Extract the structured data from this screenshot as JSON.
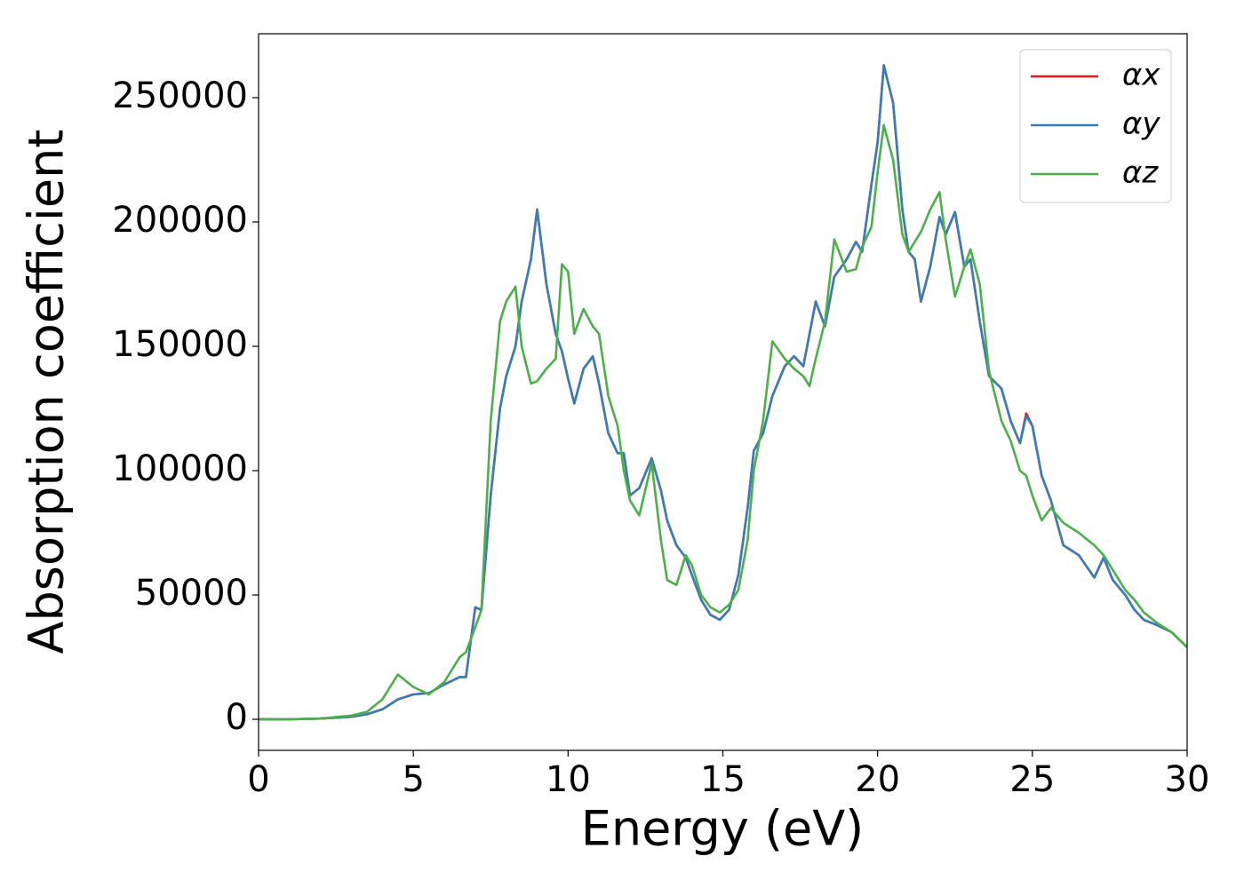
{
  "chart_data": {
    "type": "line",
    "xlabel": "Energy (eV)",
    "ylabel": "Absorption coefficient",
    "x": [
      0,
      1,
      2,
      3,
      3.5,
      4,
      4.5,
      5,
      5.5,
      6,
      6.5,
      6.7,
      7,
      7.2,
      7.5,
      7.8,
      8,
      8.3,
      8.5,
      8.8,
      9,
      9.3,
      9.6,
      9.8,
      10,
      10.2,
      10.5,
      10.8,
      11,
      11.3,
      11.6,
      11.8,
      12,
      12.3,
      12.7,
      13,
      13.2,
      13.5,
      13.8,
      14,
      14.3,
      14.6,
      14.9,
      15.2,
      15.5,
      15.8,
      16,
      16.3,
      16.6,
      17,
      17.3,
      17.6,
      17.8,
      18,
      18.3,
      18.6,
      19,
      19.3,
      19.5,
      19.8,
      20,
      20.2,
      20.5,
      20.8,
      21,
      21.2,
      21.4,
      21.7,
      22,
      22.2,
      22.5,
      22.8,
      23,
      23.3,
      23.6,
      24,
      24.3,
      24.6,
      24.8,
      25,
      25.3,
      25.6,
      26,
      26.5,
      27,
      27.3,
      27.6,
      28,
      28.3,
      28.6,
      29,
      29.5,
      30
    ],
    "series": [
      {
        "name": "αx",
        "color": "#e41a1c",
        "values": [
          0,
          0,
          300,
          1000,
          2000,
          4000,
          8000,
          10000,
          10500,
          14000,
          17000,
          17000,
          45000,
          44000,
          90000,
          125000,
          138000,
          150000,
          168000,
          185000,
          205000,
          175000,
          155000,
          148000,
          137000,
          127000,
          141000,
          146000,
          135000,
          115000,
          107000,
          107000,
          90000,
          93000,
          105000,
          92000,
          80000,
          70000,
          65000,
          58000,
          48000,
          42000,
          40000,
          44000,
          58000,
          85000,
          108000,
          115000,
          130000,
          142000,
          146000,
          142000,
          155000,
          168000,
          158000,
          178000,
          185000,
          192000,
          188000,
          215000,
          232000,
          263000,
          248000,
          205000,
          188000,
          185000,
          168000,
          182000,
          202000,
          195000,
          204000,
          182000,
          185000,
          160000,
          138000,
          133000,
          120000,
          111000,
          123000,
          118000,
          98000,
          88000,
          70000,
          66000,
          57000,
          65000,
          56000,
          50000,
          44000,
          40000,
          38000,
          35000,
          29000
        ]
      },
      {
        "name": "αy",
        "color": "#377eb8",
        "values": [
          0,
          0,
          300,
          1000,
          2000,
          4000,
          8000,
          10000,
          10500,
          14000,
          17000,
          17000,
          45000,
          44000,
          90000,
          125000,
          138000,
          150000,
          168000,
          185000,
          205000,
          175000,
          155000,
          148000,
          137000,
          127000,
          141000,
          146000,
          135000,
          115000,
          107000,
          107000,
          90000,
          93000,
          105000,
          92000,
          80000,
          70000,
          65000,
          58000,
          48000,
          42000,
          40000,
          44000,
          58000,
          85000,
          108000,
          115000,
          130000,
          142000,
          146000,
          142000,
          155000,
          168000,
          158000,
          178000,
          185000,
          192000,
          188000,
          215000,
          232000,
          263000,
          248000,
          205000,
          188000,
          185000,
          168000,
          182000,
          202000,
          195000,
          204000,
          182000,
          185000,
          160000,
          138000,
          133000,
          120000,
          111000,
          122000,
          118000,
          98000,
          88000,
          70000,
          66000,
          57000,
          65000,
          56000,
          50000,
          44000,
          40000,
          38000,
          35000,
          29000
        ]
      },
      {
        "name": "αz",
        "color": "#4daf4a",
        "values": [
          0,
          0,
          300,
          1500,
          3000,
          8000,
          18000,
          13000,
          10000,
          15000,
          25000,
          27000,
          37000,
          44000,
          120000,
          160000,
          168000,
          174000,
          150000,
          135000,
          136000,
          141000,
          145000,
          183000,
          180000,
          155000,
          165000,
          158000,
          155000,
          130000,
          118000,
          100000,
          88000,
          82000,
          103000,
          72000,
          56000,
          54000,
          66000,
          62000,
          50000,
          45000,
          43000,
          46000,
          52000,
          72000,
          100000,
          120000,
          152000,
          145000,
          141000,
          138000,
          134000,
          145000,
          160000,
          193000,
          180000,
          181000,
          190000,
          198000,
          220000,
          239000,
          225000,
          195000,
          188000,
          192000,
          196000,
          205000,
          212000,
          193000,
          170000,
          182000,
          189000,
          175000,
          140000,
          120000,
          112000,
          100000,
          98000,
          90000,
          80000,
          85000,
          79000,
          75000,
          70000,
          66000,
          60000,
          52000,
          48000,
          43000,
          39000,
          35000,
          29000
        ]
      }
    ],
    "xlim": [
      0,
      30
    ],
    "xticks": [
      0,
      5,
      10,
      15,
      20,
      25,
      30
    ],
    "ylim": [
      -12500,
      275700
    ],
    "yticks": [
      0,
      50000,
      100000,
      150000,
      200000,
      250000
    ],
    "legend": "upper right"
  }
}
